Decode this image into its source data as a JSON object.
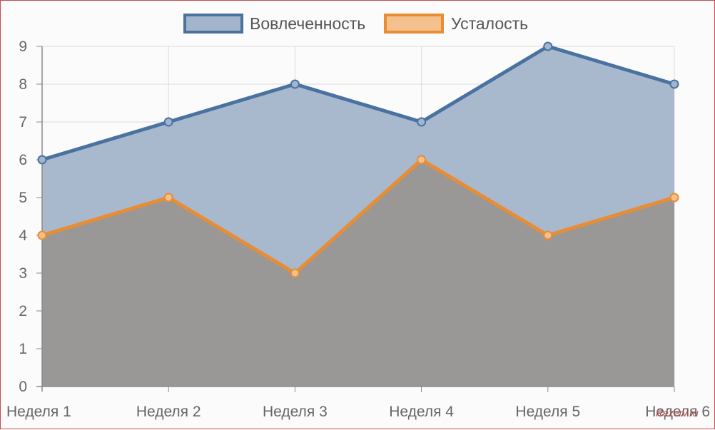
{
  "chart_data": {
    "type": "area",
    "categories": [
      "Неделя 1",
      "Неделя 2",
      "Неделя 3",
      "Неделя 4",
      "Неделя 5",
      "Неделя 6"
    ],
    "series": [
      {
        "name": "Вовлеченность",
        "values": [
          6,
          7,
          8,
          7,
          9,
          8
        ],
        "color": "#4a72a0",
        "fill": "#a3b5cb"
      },
      {
        "name": "Усталость",
        "values": [
          4,
          5,
          3,
          6,
          4,
          5
        ],
        "color": "#e88d33",
        "fill": "#f4c08d"
      }
    ],
    "y_ticks": [
      "0",
      "1",
      "2",
      "3",
      "4",
      "5",
      "6",
      "7",
      "8",
      "9"
    ],
    "ylim": [
      0,
      9
    ],
    "grid": true,
    "legend_position": "top",
    "overlap_fill_color": "#9a9896"
  },
  "watermark": "Rezerv.ru"
}
